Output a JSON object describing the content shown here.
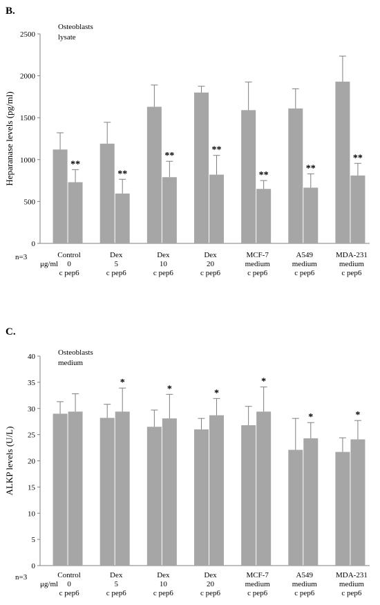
{
  "chart_data": [
    {
      "type": "bar",
      "panel_label": "B.",
      "annotation": [
        "Osteoblasts",
        "lysate"
      ],
      "ylabel": "Heparanase levels (pg/ml)",
      "ylim": [
        0,
        2500
      ],
      "yticks": [
        0,
        500,
        1000,
        1500,
        2000,
        2500
      ],
      "n_label": "n=3",
      "unit_label": "μg/ml",
      "categories": [
        {
          "lines": [
            "Control",
            "0",
            "c  pep6"
          ]
        },
        {
          "lines": [
            "Dex",
            "5",
            "c  pep6"
          ]
        },
        {
          "lines": [
            "Dex",
            "10",
            "c  pep6"
          ]
        },
        {
          "lines": [
            "Dex",
            "20",
            "c  pep6"
          ]
        },
        {
          "lines": [
            "MCF-7",
            "medium",
            "c  pep6"
          ]
        },
        {
          "lines": [
            "A549",
            "medium",
            "c  pep6"
          ]
        },
        {
          "lines": [
            "MDA-231",
            "medium",
            "c  pep6"
          ]
        }
      ],
      "series": [
        {
          "values": [
            1120,
            1190,
            1630,
            1800,
            1590,
            1610,
            1930
          ],
          "errors": [
            200,
            255,
            260,
            75,
            335,
            235,
            305
          ],
          "significance": [
            "",
            "",
            "",
            "",
            "",
            "",
            ""
          ]
        },
        {
          "values": [
            730,
            595,
            790,
            820,
            650,
            665,
            810
          ],
          "errors": [
            150,
            170,
            190,
            230,
            100,
            165,
            145
          ],
          "significance": [
            "**",
            "**",
            "**",
            "**",
            "**",
            "**",
            "**"
          ]
        }
      ],
      "bar_color": "#a6a6a6"
    },
    {
      "type": "bar",
      "panel_label": "C.",
      "annotation": [
        "Osteoblasts",
        "medium"
      ],
      "ylabel": "ALKP levels (U/L)",
      "ylim": [
        0,
        40
      ],
      "yticks": [
        0,
        5,
        10,
        15,
        20,
        25,
        30,
        35,
        40
      ],
      "n_label": "n=3",
      "unit_label": "μg/ml",
      "categories": [
        {
          "lines": [
            "Control",
            "0",
            "c  pep6"
          ]
        },
        {
          "lines": [
            "Dex",
            "5",
            "c  pep6"
          ]
        },
        {
          "lines": [
            "Dex",
            "10",
            "c  pep6"
          ]
        },
        {
          "lines": [
            "Dex",
            "20",
            "c  pep6"
          ]
        },
        {
          "lines": [
            "MCF-7",
            "medium",
            "c  pep6"
          ]
        },
        {
          "lines": [
            "A549",
            "medium",
            "c  pep6"
          ]
        },
        {
          "lines": [
            "MDA-231",
            "medium",
            "c  pep6"
          ]
        }
      ],
      "series": [
        {
          "values": [
            29.0,
            28.2,
            26.5,
            26.0,
            26.8,
            22.1,
            21.7
          ],
          "errors": [
            2.3,
            2.6,
            3.2,
            2.1,
            3.6,
            6.0,
            2.7
          ],
          "significance": [
            "",
            "",
            "",
            "",
            "",
            "",
            ""
          ]
        },
        {
          "values": [
            29.4,
            29.4,
            28.1,
            28.7,
            29.4,
            24.3,
            24.1
          ],
          "errors": [
            3.4,
            4.5,
            4.6,
            3.2,
            4.7,
            3.0,
            3.6
          ],
          "significance": [
            "",
            "*",
            "*",
            "*",
            "*",
            "*",
            "*"
          ]
        }
      ],
      "bar_color": "#a6a6a6"
    }
  ]
}
